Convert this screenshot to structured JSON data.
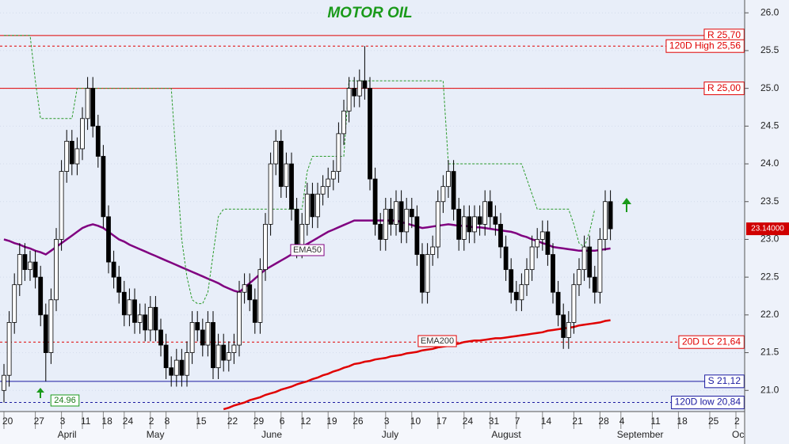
{
  "chart_data": {
    "type": "candlestick",
    "title": "MOTOR OIL",
    "categories": [
      "20",
      null,
      null,
      null,
      null,
      null,
      "27",
      null,
      null,
      null,
      null,
      "3",
      null,
      null,
      null,
      "11",
      null,
      null,
      null,
      "18",
      null,
      null,
      null,
      "24",
      null,
      null,
      null,
      null,
      "2",
      null,
      null,
      "8",
      null,
      null,
      null,
      null,
      null,
      "15",
      null,
      null,
      null,
      null,
      null,
      "22",
      null,
      null,
      null,
      null,
      "29",
      null,
      null,
      null,
      null,
      "6",
      null,
      null,
      null,
      "12",
      null,
      null,
      null,
      null,
      "19",
      null,
      null,
      null,
      null,
      "26",
      null,
      null,
      null,
      null,
      null,
      "3",
      null,
      null,
      null,
      null,
      "10",
      null,
      null,
      null,
      null,
      "17",
      null,
      null,
      null,
      null,
      "24",
      null,
      null,
      null,
      null,
      "31",
      null,
      null,
      null,
      null,
      "7",
      null,
      null,
      null,
      null,
      "14",
      null,
      null,
      null,
      null,
      null,
      "21",
      null,
      null,
      null,
      null,
      "28",
      null,
      null,
      null,
      "4",
      null,
      null,
      null,
      null,
      null,
      "11",
      null,
      null,
      null,
      null,
      "18",
      null,
      null,
      null,
      null,
      null,
      "25",
      null,
      null,
      null,
      null,
      "2",
      null
    ],
    "months": [
      null,
      null,
      null,
      null,
      null,
      null,
      null,
      null,
      null,
      null,
      null,
      "April",
      null,
      null,
      null,
      null,
      null,
      null,
      null,
      null,
      null,
      null,
      null,
      null,
      null,
      null,
      null,
      null,
      "May",
      null,
      null,
      null,
      null,
      null,
      null,
      null,
      null,
      null,
      null,
      null,
      null,
      null,
      null,
      null,
      null,
      null,
      null,
      null,
      null,
      null,
      "June",
      null,
      null,
      null,
      null,
      null,
      null,
      null,
      null,
      null,
      null,
      null,
      null,
      null,
      null,
      null,
      null,
      null,
      null,
      null,
      null,
      null,
      null,
      "July",
      null,
      null,
      null,
      null,
      null,
      null,
      null,
      null,
      null,
      null,
      null,
      null,
      null,
      null,
      null,
      null,
      null,
      null,
      null,
      null,
      "August",
      null,
      null,
      null,
      null,
      null,
      null,
      null,
      null,
      null,
      null,
      null,
      null,
      null,
      null,
      null,
      null,
      null,
      null,
      null,
      null,
      null,
      null,
      null,
      "September",
      null,
      null,
      null,
      null,
      null,
      null,
      null,
      null,
      null,
      null,
      null,
      null,
      null,
      null,
      null,
      null,
      null,
      null,
      null,
      null,
      null,
      "Oc",
      null
    ],
    "open": [
      21.0,
      21.2,
      21.9,
      22.4,
      22.8,
      22.6,
      22.7,
      22.5,
      22.0,
      21.5,
      22.2,
      23.0,
      23.9,
      24.3,
      24.0,
      24.2,
      24.6,
      25.0,
      24.5,
      24.1,
      23.3,
      22.7,
      22.5,
      22.3,
      22.0,
      22.2,
      21.9,
      22.0,
      21.8,
      22.1,
      21.8,
      21.6,
      21.3,
      21.2,
      21.4,
      21.2,
      21.5,
      21.9,
      21.8,
      21.6,
      21.9,
      21.3,
      21.6,
      21.4,
      21.5,
      21.6,
      22.3,
      22.4,
      22.2,
      21.9,
      22.6,
      23.2,
      24.0,
      24.3,
      23.7,
      24.0,
      23.4,
      22.9,
      23.2,
      23.6,
      23.3,
      23.6,
      23.7,
      23.8,
      23.9,
      24.4,
      24.7,
      25.0,
      24.9,
      25.1,
      25.0,
      23.8,
      23.2,
      23.0,
      23.4,
      23.2,
      23.5,
      23.1,
      23.4,
      23.3,
      22.8,
      22.3,
      22.8,
      22.9,
      23.5,
      23.7,
      23.9,
      23.4,
      23.0,
      23.3,
      23.1,
      23.3,
      23.2,
      23.5,
      23.3,
      23.2,
      22.9,
      22.6,
      22.3,
      22.2,
      22.4,
      22.6,
      22.9,
      23.0,
      23.1,
      22.8,
      22.3,
      22.0,
      21.7,
      21.9,
      22.4,
      22.6,
      22.9,
      22.5,
      22.3,
      23.0,
      23.5,
      null,
      null,
      null,
      null,
      null,
      null,
      null,
      null,
      null,
      null,
      null,
      null,
      null,
      null,
      null,
      null,
      null,
      null,
      null,
      null,
      null,
      null,
      null,
      null,
      null
    ],
    "high": [
      21.35,
      22.05,
      22.55,
      22.95,
      22.95,
      22.85,
      22.85,
      22.65,
      22.15,
      22.35,
      23.15,
      24.05,
      24.45,
      24.45,
      24.35,
      24.75,
      25.15,
      25.15,
      24.65,
      24.25,
      23.45,
      22.85,
      22.65,
      22.45,
      22.35,
      22.35,
      22.15,
      22.15,
      22.25,
      22.25,
      21.95,
      21.75,
      21.45,
      21.55,
      21.55,
      21.65,
      22.05,
      22.05,
      21.95,
      22.05,
      22.05,
      21.75,
      21.75,
      21.65,
      21.75,
      22.45,
      22.55,
      22.55,
      22.35,
      22.75,
      23.35,
      24.15,
      24.45,
      24.45,
      24.15,
      24.15,
      23.55,
      23.35,
      23.75,
      23.75,
      23.75,
      23.85,
      23.95,
      24.05,
      24.55,
      24.85,
      25.15,
      25.15,
      25.25,
      25.56,
      25.15,
      23.95,
      23.35,
      23.55,
      23.55,
      23.65,
      23.65,
      23.55,
      23.55,
      23.45,
      22.95,
      22.95,
      23.05,
      23.65,
      23.85,
      24.05,
      24.05,
      23.55,
      23.45,
      23.45,
      23.45,
      23.45,
      23.65,
      23.65,
      23.45,
      23.35,
      23.05,
      22.75,
      22.45,
      22.55,
      22.75,
      23.05,
      23.15,
      23.25,
      23.25,
      22.95,
      22.45,
      22.15,
      22.05,
      22.55,
      22.75,
      23.05,
      23.05,
      22.65,
      23.15,
      23.65,
      23.65,
      null,
      null,
      null,
      null,
      null,
      null,
      null,
      null,
      null,
      null,
      null,
      null,
      null,
      null,
      null,
      null,
      null,
      null,
      null,
      null,
      null,
      null,
      null,
      null,
      null
    ],
    "low": [
      20.84,
      21.05,
      21.75,
      22.25,
      22.45,
      22.45,
      22.35,
      21.85,
      21.12,
      21.35,
      22.05,
      22.85,
      23.75,
      23.85,
      23.85,
      24.05,
      24.45,
      24.35,
      23.95,
      23.15,
      22.55,
      22.35,
      22.15,
      21.85,
      21.85,
      21.75,
      21.75,
      21.65,
      21.65,
      21.65,
      21.45,
      21.15,
      21.05,
      21.05,
      21.05,
      21.05,
      21.35,
      21.65,
      21.45,
      21.45,
      21.15,
      21.15,
      21.25,
      21.25,
      21.35,
      21.45,
      22.15,
      22.05,
      21.75,
      21.75,
      22.45,
      23.05,
      23.85,
      23.55,
      23.55,
      23.25,
      22.75,
      22.75,
      23.05,
      23.15,
      23.15,
      23.45,
      23.55,
      23.65,
      23.75,
      24.25,
      24.55,
      24.75,
      24.75,
      24.85,
      23.65,
      23.05,
      22.85,
      22.85,
      23.05,
      23.05,
      22.95,
      22.95,
      23.15,
      22.65,
      22.15,
      22.15,
      22.65,
      22.75,
      23.35,
      23.55,
      23.25,
      22.85,
      22.85,
      22.95,
      22.95,
      23.05,
      23.05,
      23.15,
      23.05,
      22.75,
      22.45,
      22.15,
      22.05,
      22.05,
      22.25,
      22.45,
      22.75,
      22.85,
      22.65,
      22.15,
      21.85,
      21.55,
      21.55,
      21.75,
      22.25,
      22.45,
      22.35,
      22.15,
      22.15,
      22.85,
      22.99,
      null,
      null,
      null,
      null,
      null,
      null,
      null,
      null,
      null,
      null,
      null,
      null,
      null,
      null,
      null,
      null,
      null,
      null,
      null,
      null,
      null,
      null,
      null,
      null,
      null
    ],
    "close": [
      21.2,
      21.9,
      22.4,
      22.8,
      22.6,
      22.7,
      22.5,
      22.0,
      21.5,
      22.2,
      23.0,
      23.9,
      24.3,
      24.0,
      24.2,
      24.6,
      25.0,
      24.5,
      24.1,
      23.3,
      22.7,
      22.5,
      22.3,
      22.0,
      22.2,
      21.9,
      22.0,
      21.8,
      22.1,
      21.8,
      21.6,
      21.3,
      21.2,
      21.4,
      21.2,
      21.5,
      21.9,
      21.8,
      21.6,
      21.9,
      21.3,
      21.6,
      21.4,
      21.5,
      21.6,
      22.3,
      22.4,
      22.2,
      21.9,
      22.6,
      23.2,
      24.0,
      24.3,
      23.7,
      24.0,
      23.4,
      22.9,
      23.2,
      23.6,
      23.3,
      23.6,
      23.7,
      23.8,
      23.9,
      24.4,
      24.7,
      25.0,
      24.9,
      25.1,
      25.0,
      23.8,
      23.2,
      23.0,
      23.4,
      23.2,
      23.5,
      23.1,
      23.4,
      23.3,
      22.8,
      22.3,
      22.8,
      22.9,
      23.5,
      23.7,
      23.9,
      23.4,
      23.0,
      23.3,
      23.1,
      23.3,
      23.2,
      23.5,
      23.3,
      23.2,
      22.9,
      22.6,
      22.3,
      22.2,
      22.4,
      22.6,
      22.9,
      23.0,
      23.1,
      22.8,
      22.3,
      22.0,
      21.7,
      21.9,
      22.4,
      22.6,
      22.9,
      22.5,
      22.3,
      23.0,
      23.5,
      23.14,
      null,
      null,
      null,
      null,
      null,
      null,
      null,
      null,
      null,
      null,
      null,
      null,
      null,
      null,
      null,
      null,
      null,
      null,
      null,
      null,
      null,
      null,
      null,
      null,
      null
    ],
    "up_color": "#ffffff",
    "down_color": "#000000",
    "series": [
      {
        "name": "EMA50",
        "color": "#800080",
        "values": [
          23.0,
          22.98,
          22.95,
          22.93,
          22.9,
          22.88,
          22.85,
          22.83,
          22.8,
          22.85,
          22.9,
          22.95,
          23.0,
          23.05,
          23.1,
          23.15,
          23.18,
          23.2,
          23.18,
          23.15,
          23.1,
          23.05,
          23.0,
          22.97,
          22.93,
          22.9,
          22.87,
          22.84,
          22.81,
          22.78,
          22.75,
          22.72,
          22.69,
          22.66,
          22.63,
          22.6,
          22.57,
          22.54,
          22.51,
          22.48,
          22.45,
          22.42,
          22.38,
          22.35,
          22.32,
          22.3,
          22.36,
          22.42,
          22.48,
          22.54,
          22.6,
          22.64,
          22.68,
          22.72,
          22.76,
          22.8,
          22.85,
          22.9,
          22.94,
          22.98,
          23.02,
          23.06,
          23.1,
          23.13,
          23.16,
          23.19,
          23.22,
          23.25,
          23.25,
          23.25,
          23.25,
          23.25,
          23.25,
          23.25,
          23.25,
          23.25,
          23.23,
          23.21,
          23.19,
          23.17,
          23.15,
          23.16,
          23.17,
          23.18,
          23.19,
          23.2,
          23.19,
          23.18,
          23.18,
          23.17,
          23.16,
          23.16,
          23.15,
          23.14,
          23.13,
          23.12,
          23.11,
          23.1,
          23.08,
          23.05,
          23.03,
          23.0,
          22.98,
          22.95,
          22.93,
          22.9,
          22.89,
          22.88,
          22.87,
          22.86,
          22.85,
          22.85,
          22.85,
          22.85,
          22.86,
          22.87,
          22.88,
          null,
          null,
          null,
          null,
          null,
          null,
          null,
          null,
          null,
          null,
          null,
          null,
          null,
          null,
          null,
          null,
          null,
          null,
          null,
          null,
          null,
          null,
          null,
          null,
          null
        ]
      },
      {
        "name": "EMA200",
        "color": "#e00000",
        "values": [
          null,
          null,
          null,
          null,
          null,
          null,
          null,
          null,
          null,
          null,
          null,
          null,
          null,
          null,
          null,
          null,
          null,
          null,
          null,
          null,
          null,
          null,
          null,
          null,
          null,
          null,
          null,
          null,
          null,
          null,
          null,
          null,
          null,
          null,
          null,
          null,
          null,
          null,
          null,
          null,
          null,
          null,
          20.75,
          20.77,
          20.8,
          20.82,
          20.84,
          20.87,
          20.89,
          20.91,
          20.94,
          20.96,
          20.98,
          21.01,
          21.03,
          21.05,
          21.08,
          21.1,
          21.12,
          21.15,
          21.17,
          21.2,
          21.22,
          21.25,
          21.27,
          21.3,
          21.32,
          21.35,
          21.36,
          21.38,
          21.39,
          21.41,
          21.42,
          21.43,
          21.45,
          21.46,
          21.47,
          21.49,
          21.5,
          21.51,
          21.53,
          21.54,
          21.55,
          21.57,
          21.58,
          21.59,
          21.61,
          21.62,
          21.64,
          21.65,
          21.66,
          21.66,
          21.67,
          21.68,
          21.69,
          21.69,
          21.7,
          21.71,
          21.72,
          21.73,
          21.74,
          21.75,
          21.76,
          21.77,
          21.79,
          21.8,
          21.81,
          21.82,
          21.83,
          21.84,
          21.86,
          21.87,
          21.88,
          21.89,
          21.9,
          21.92,
          21.93,
          null,
          null,
          null,
          null,
          null,
          null,
          null,
          null,
          null,
          null,
          null,
          null,
          null,
          null,
          null,
          null,
          null,
          null,
          null,
          null,
          null,
          null,
          null,
          null,
          null
        ]
      },
      {
        "color": "#2a9a2a",
        "dash": true,
        "values": [
          25.7,
          25.7,
          25.7,
          25.7,
          25.7,
          25.7,
          25.1,
          24.6,
          24.6,
          24.6,
          24.6,
          24.6,
          24.6,
          24.6,
          25.0,
          25.0,
          25.0,
          25.0,
          25.0,
          25.0,
          25.0,
          25.0,
          25.0,
          25.0,
          25.0,
          25.0,
          25.0,
          25.0,
          25.0,
          25.0,
          25.0,
          25.0,
          25.0,
          24.0,
          23.0,
          22.5,
          22.2,
          22.15,
          22.15,
          22.3,
          22.8,
          23.3,
          23.4,
          23.4,
          23.4,
          23.4,
          23.4,
          23.4,
          23.4,
          23.4,
          23.4,
          23.4,
          23.4,
          23.4,
          23.4,
          23.4,
          23.4,
          23.4,
          23.9,
          24.1,
          24.1,
          24.1,
          24.1,
          24.1,
          24.1,
          24.1,
          25.1,
          25.1,
          25.1,
          25.1,
          25.1,
          25.1,
          25.1,
          25.1,
          25.1,
          25.1,
          25.1,
          25.1,
          25.1,
          25.1,
          25.1,
          25.1,
          25.1,
          25.1,
          25.1,
          24.0,
          24.0,
          24.0,
          24.0,
          24.0,
          24.0,
          24.0,
          24.0,
          24.0,
          24.0,
          24.0,
          24.0,
          24.0,
          24.0,
          24.0,
          23.8,
          23.6,
          23.4,
          23.4,
          23.4,
          23.4,
          23.4,
          23.4,
          23.4,
          23.2,
          22.95,
          22.9,
          23.1,
          23.4,
          null,
          null,
          null,
          null,
          null,
          null,
          null,
          null,
          null,
          null,
          null,
          null,
          null,
          null,
          null,
          null,
          null,
          null,
          null,
          null,
          null,
          null,
          null,
          null,
          null,
          null,
          null,
          null
        ]
      }
    ],
    "levels": [
      {
        "value": 25.7,
        "label": "R 25,70",
        "color": "#e00000",
        "dash": false
      },
      {
        "value": 25.56,
        "label": "120D High 25,56",
        "color": "#e00000",
        "dash": true
      },
      {
        "value": 25.0,
        "label": "R 25,00",
        "color": "#e00000",
        "dash": false
      },
      {
        "value": 21.64,
        "label": "20D LC 21,64",
        "color": "#e00000",
        "dash": true
      },
      {
        "value": 21.12,
        "label": "S 21,12",
        "color": "#1a1aa0",
        "dash": false
      },
      {
        "value": 20.84,
        "label": "120D low 20,84",
        "color": "#1a1aa0",
        "dash": true
      }
    ],
    "last_price": {
      "value": 23.14,
      "label": "23.14000"
    },
    "signal_label": 24.96,
    "ylim": [
      20.72,
      26.17
    ],
    "yticks": [
      {
        "value": 21,
        "label": "21.0"
      },
      {
        "value": 21.5,
        "label": "21.5"
      },
      {
        "value": 22,
        "label": "22.0"
      },
      {
        "value": 22.5,
        "label": "22.5"
      },
      {
        "value": 23,
        "label": "23.0"
      },
      {
        "value": 23.5,
        "label": "23.5"
      },
      {
        "value": 24,
        "label": "24.0"
      },
      {
        "value": 24.5,
        "label": "24.5"
      },
      {
        "value": 25,
        "label": "25.0"
      },
      {
        "value": 25.5,
        "label": "25.5"
      },
      {
        "value": 26,
        "label": "26.0"
      }
    ]
  }
}
